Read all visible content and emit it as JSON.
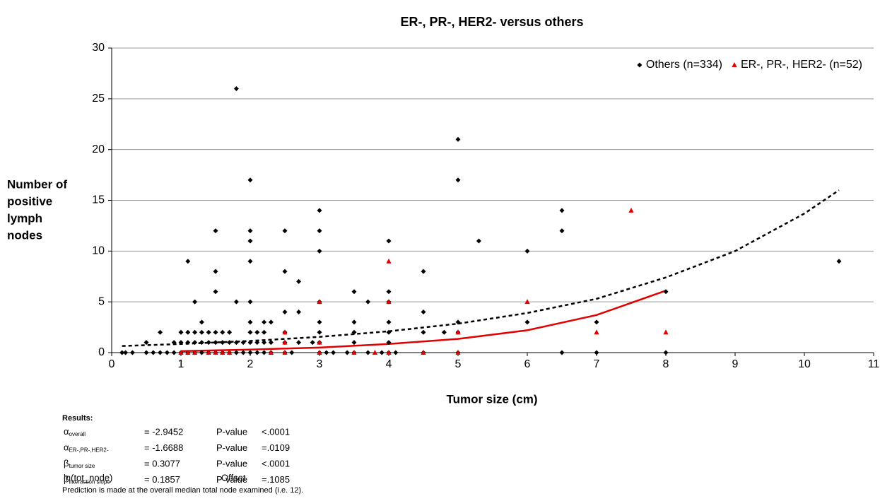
{
  "chart_data": {
    "type": "scatter",
    "title": "ER-, PR-, HER2- versus others",
    "xlabel": "Tumor size (cm)",
    "ylabel": [
      "Number of",
      "positive",
      "lymph",
      "nodes"
    ],
    "xlim": [
      0,
      11
    ],
    "xticks": [
      0,
      1,
      2,
      3,
      4,
      5,
      6,
      7,
      8,
      9,
      10,
      11
    ],
    "ylim": [
      0,
      30
    ],
    "yticks": [
      0,
      5,
      10,
      15,
      20,
      25,
      30
    ],
    "grid": true,
    "legend": "top-right",
    "series": [
      {
        "name": "Others (n=334)",
        "color": "#000000",
        "marker": "diamond",
        "x": [
          0.15,
          0.2,
          0.3,
          0.5,
          0.6,
          0.7,
          0.8,
          0.9,
          1,
          1.1,
          1.2,
          1.3,
          1.4,
          1.5,
          1.6,
          1.7,
          1.8,
          1.9,
          2,
          2.1,
          2.2,
          2.3,
          2.5,
          2.6,
          3,
          3.1,
          3.2,
          3.4,
          3.5,
          3.7,
          3.9,
          4,
          4.1,
          4.5,
          5,
          6.5,
          7,
          8,
          0.5,
          0.9,
          1,
          1.1,
          1.2,
          1.3,
          1.4,
          1.5,
          1.6,
          1.7,
          1.8,
          1.9,
          2,
          2.1,
          2.2,
          2.3,
          2.5,
          2.7,
          2.9,
          3,
          3.5,
          4,
          0.7,
          1,
          1.1,
          1.2,
          1.3,
          1.4,
          1.5,
          1.6,
          1.7,
          2,
          2.1,
          2.2,
          2.5,
          3,
          3.5,
          4,
          4.5,
          4.8,
          5,
          1.3,
          2,
          2.2,
          2.3,
          3,
          3.5,
          4,
          5,
          6,
          7,
          2.5,
          2.7,
          4.5,
          1.2,
          1.8,
          2,
          3,
          3.7,
          4,
          8,
          1.5,
          3.5,
          4,
          2.7,
          1.5,
          2.5,
          4.5,
          1.1,
          2,
          10.5,
          3,
          6,
          2,
          4,
          5.3,
          1.5,
          2,
          2.5,
          3,
          6.5,
          3,
          6.5,
          2,
          5,
          5,
          1.8
        ],
        "values": [
          0,
          0,
          0,
          0,
          0,
          0,
          0,
          0,
          0,
          0,
          0,
          0,
          0,
          0,
          0,
          0,
          0,
          0,
          0,
          0,
          0,
          0,
          0,
          0,
          0,
          0,
          0,
          0,
          0,
          0,
          0,
          0,
          0,
          0,
          0,
          0,
          0,
          0,
          1,
          1,
          1,
          1,
          1,
          1,
          1,
          1,
          1,
          1,
          1,
          1,
          1,
          1,
          1,
          1,
          1,
          1,
          1,
          1,
          1,
          1,
          2,
          2,
          2,
          2,
          2,
          2,
          2,
          2,
          2,
          2,
          2,
          2,
          2,
          2,
          2,
          2,
          2,
          2,
          2,
          3,
          3,
          3,
          3,
          3,
          3,
          3,
          3,
          3,
          3,
          4,
          4,
          4,
          5,
          5,
          5,
          5,
          5,
          5,
          6,
          6,
          6,
          6,
          7,
          8,
          8,
          8,
          9,
          9,
          9,
          10,
          10,
          11,
          11,
          11,
          12,
          12,
          12,
          12,
          12,
          14,
          14,
          17,
          17,
          21,
          26
        ]
      },
      {
        "name": "ER-, PR-, HER2- (n=52)",
        "color": "#e00000",
        "marker": "triangle",
        "x": [
          1,
          1.1,
          1.2,
          1.4,
          1.5,
          1.6,
          1.7,
          2.3,
          2.5,
          3,
          3.5,
          3.8,
          4,
          4.5,
          5,
          2.5,
          3,
          2.5,
          5,
          3,
          4,
          6,
          4,
          7.5,
          7,
          8
        ],
        "values": [
          0,
          0,
          0,
          0,
          0,
          0,
          0,
          0,
          0,
          0,
          0,
          0,
          0,
          0,
          0,
          1,
          1,
          2,
          2,
          5,
          5,
          5,
          9,
          14,
          2,
          2
        ]
      }
    ],
    "trendlines": [
      {
        "color": "#000000",
        "dashed": true,
        "x": [
          0.15,
          1,
          2,
          3,
          4,
          5,
          6,
          7,
          8,
          9,
          10,
          10.5
        ],
        "values": [
          0.65,
          0.85,
          1.15,
          1.55,
          2.1,
          2.85,
          3.9,
          5.3,
          7.4,
          10,
          13.7,
          16
        ]
      },
      {
        "color": "#e00000",
        "dashed": false,
        "x": [
          1,
          2,
          3,
          4,
          5,
          6,
          7,
          8
        ],
        "values": [
          0.15,
          0.3,
          0.5,
          0.85,
          1.35,
          2.2,
          3.7,
          6.1
        ]
      }
    ],
    "results": {
      "heading": "Results:",
      "rows": [
        {
          "symbol": "α",
          "sub": "overall",
          "value": "= -2.9452",
          "p_label": "P-value",
          "p": "<.0001"
        },
        {
          "symbol": "α",
          "sub": "ER-,PR-,HER2-",
          "value": "= -1.6688",
          "p_label": "P-value",
          "p": "=.0109"
        },
        {
          "symbol": "β",
          "sub": "tumor size",
          "value": "= 0.3077",
          "p_label": "P-value",
          "p": "<.0001"
        },
        {
          "symbol": "β",
          "sub": "interaction slope",
          "value": "= 0.1857",
          "p_label": "P-value",
          "p": "=.1085"
        }
      ],
      "offset_name": "ln(tot_node)",
      "offset_label": "Offset",
      "note": "Prediction is made at the overall median total node examined (i.e. 12)."
    }
  }
}
